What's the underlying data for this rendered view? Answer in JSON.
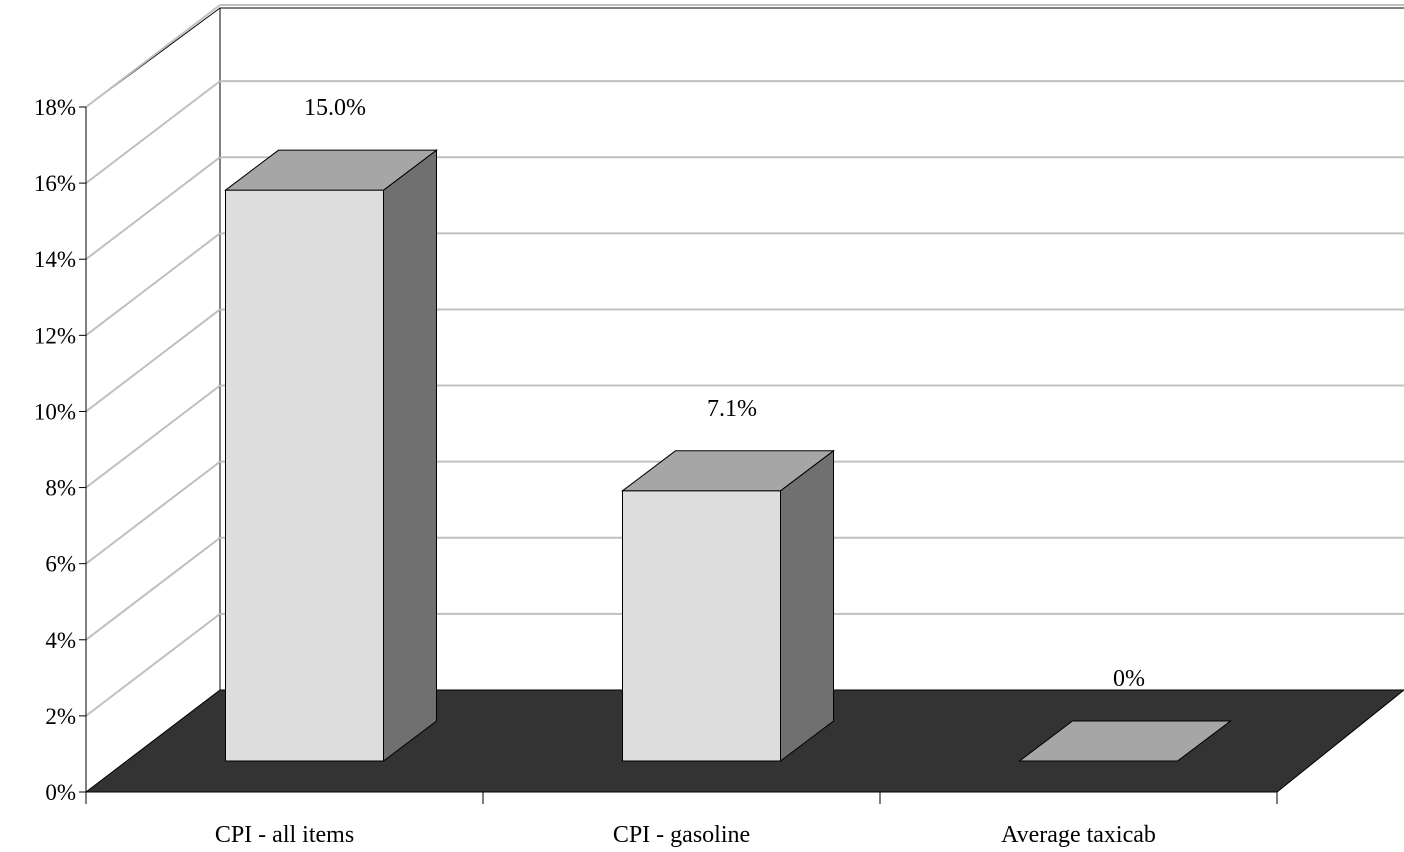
{
  "chart_data": {
    "type": "bar",
    "style": "3d-column",
    "categories": [
      "CPI - all items",
      "CPI - gasoline",
      "Average taxicab"
    ],
    "values": [
      15.0,
      7.1,
      0
    ],
    "data_labels": [
      "15.0%",
      "7.1%",
      "0%"
    ],
    "yticks": [
      "0%",
      "2%",
      "4%",
      "6%",
      "8%",
      "10%",
      "12%",
      "14%",
      "16%",
      "18%"
    ],
    "ylim": [
      0,
      18
    ],
    "grid": true,
    "legend": "none",
    "colors": {
      "bar_front": "#dddddd",
      "bar_top": "#a6a6a6",
      "bar_side": "#707070",
      "floor": "#333333",
      "grid": "#c0c0c0",
      "axis": "#000000"
    }
  }
}
